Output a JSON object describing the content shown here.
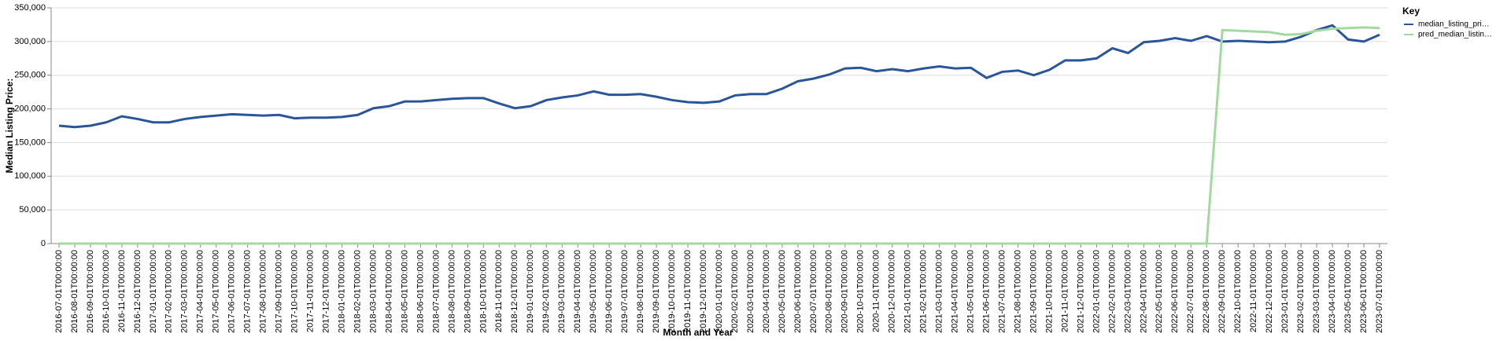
{
  "chart_data": {
    "type": "line",
    "x_label": "Month and Year",
    "y_label": "Median Listing Price:",
    "legend_title": "Key",
    "categories": [
      "2016-07-01T00:00:00",
      "2016-08-01T00:00:00",
      "2016-09-01T00:00:00",
      "2016-10-01T00:00:00",
      "2016-11-01T00:00:00",
      "2016-12-01T00:00:00",
      "2017-01-01T00:00:00",
      "2017-02-01T00:00:00",
      "2017-03-01T00:00:00",
      "2017-04-01T00:00:00",
      "2017-05-01T00:00:00",
      "2017-06-01T00:00:00",
      "2017-07-01T00:00:00",
      "2017-08-01T00:00:00",
      "2017-09-01T00:00:00",
      "2017-10-01T00:00:00",
      "2017-11-01T00:00:00",
      "2017-12-01T00:00:00",
      "2018-01-01T00:00:00",
      "2018-02-01T00:00:00",
      "2018-03-01T00:00:00",
      "2018-04-01T00:00:00",
      "2018-05-01T00:00:00",
      "2018-06-01T00:00:00",
      "2018-07-01T00:00:00",
      "2018-08-01T00:00:00",
      "2018-09-01T00:00:00",
      "2018-10-01T00:00:00",
      "2018-11-01T00:00:00",
      "2018-12-01T00:00:00",
      "2019-01-01T00:00:00",
      "2019-02-01T00:00:00",
      "2019-03-01T00:00:00",
      "2019-04-01T00:00:00",
      "2019-05-01T00:00:00",
      "2019-06-01T00:00:00",
      "2019-07-01T00:00:00",
      "2019-08-01T00:00:00",
      "2019-09-01T00:00:00",
      "2019-10-01T00:00:00",
      "2019-11-01T00:00:00",
      "2019-12-01T00:00:00",
      "2020-01-01T00:00:00",
      "2020-02-01T00:00:00",
      "2020-03-01T00:00:00",
      "2020-04-01T00:00:00",
      "2020-05-01T00:00:00",
      "2020-06-01T00:00:00",
      "2020-07-01T00:00:00",
      "2020-08-01T00:00:00",
      "2020-09-01T00:00:00",
      "2020-10-01T00:00:00",
      "2020-11-01T00:00:00",
      "2020-12-01T00:00:00",
      "2021-01-01T00:00:00",
      "2021-02-01T00:00:00",
      "2021-03-01T00:00:00",
      "2021-04-01T00:00:00",
      "2021-05-01T00:00:00",
      "2021-06-01T00:00:00",
      "2021-07-01T00:00:00",
      "2021-08-01T00:00:00",
      "2021-09-01T00:00:00",
      "2021-10-01T00:00:00",
      "2021-11-01T00:00:00",
      "2021-12-01T00:00:00",
      "2022-01-01T00:00:00",
      "2022-02-01T00:00:00",
      "2022-03-01T00:00:00",
      "2022-04-01T00:00:00",
      "2022-05-01T00:00:00",
      "2022-06-01T00:00:00",
      "2022-07-01T00:00:00",
      "2022-08-01T00:00:00",
      "2022-09-01T00:00:00",
      "2022-10-01T00:00:00",
      "2022-11-01T00:00:00",
      "2022-12-01T00:00:00",
      "2023-01-01T00:00:00",
      "2023-02-01T00:00:00",
      "2023-03-01T00:00:00",
      "2023-04-01T00:00:00",
      "2023-05-01T00:00:00",
      "2023-06-01T00:00:00",
      "2023-07-01T00:00:00"
    ],
    "series": [
      {
        "name": "median_listing_pri…",
        "color": "#2a5699",
        "values": [
          175000,
          173000,
          175000,
          180000,
          189000,
          185000,
          180000,
          180000,
          185000,
          188000,
          190000,
          192000,
          191000,
          190000,
          191000,
          186000,
          187000,
          187000,
          188000,
          191000,
          201000,
          204000,
          211000,
          211000,
          213000,
          215000,
          216000,
          216000,
          208000,
          201000,
          204000,
          213000,
          217000,
          220000,
          226000,
          221000,
          221000,
          222000,
          218000,
          213000,
          210000,
          209000,
          211000,
          220000,
          222000,
          222000,
          230000,
          241000,
          245000,
          251000,
          260000,
          261000,
          256000,
          259000,
          256000,
          260000,
          263000,
          260000,
          261000,
          246000,
          255000,
          257000,
          250000,
          258000,
          272000,
          272000,
          275000,
          290000,
          283000,
          299000,
          301000,
          305000,
          301000,
          308000,
          300000,
          301000,
          300000,
          299000,
          300000,
          307000,
          317000,
          324000,
          303000,
          300000,
          310000
        ]
      },
      {
        "name": "pred_median_listin…",
        "color": "#a3d9a0",
        "values": [
          0,
          0,
          0,
          0,
          0,
          0,
          0,
          0,
          0,
          0,
          0,
          0,
          0,
          0,
          0,
          0,
          0,
          0,
          0,
          0,
          0,
          0,
          0,
          0,
          0,
          0,
          0,
          0,
          0,
          0,
          0,
          0,
          0,
          0,
          0,
          0,
          0,
          0,
          0,
          0,
          0,
          0,
          0,
          0,
          0,
          0,
          0,
          0,
          0,
          0,
          0,
          0,
          0,
          0,
          0,
          0,
          0,
          0,
          0,
          0,
          0,
          0,
          0,
          0,
          0,
          0,
          0,
          0,
          0,
          0,
          0,
          0,
          0,
          0,
          317000,
          316000,
          315000,
          314000,
          310000,
          311000,
          316000,
          319000,
          320000,
          321000,
          320000
        ]
      }
    ],
    "ylim": [
      0,
      350000
    ],
    "yticks": [
      0,
      {
        "value": 50000,
        "label": "50,000"
      },
      {
        "value": 100000,
        "label": "100,000"
      },
      {
        "value": 150000,
        "label": "150,000"
      },
      {
        "value": 200000,
        "label": "200,000"
      },
      {
        "value": 250000,
        "label": "250,000"
      },
      {
        "value": 300000,
        "label": "300,000"
      },
      {
        "value": 350000,
        "label": "350,000"
      }
    ],
    "grid": true
  }
}
